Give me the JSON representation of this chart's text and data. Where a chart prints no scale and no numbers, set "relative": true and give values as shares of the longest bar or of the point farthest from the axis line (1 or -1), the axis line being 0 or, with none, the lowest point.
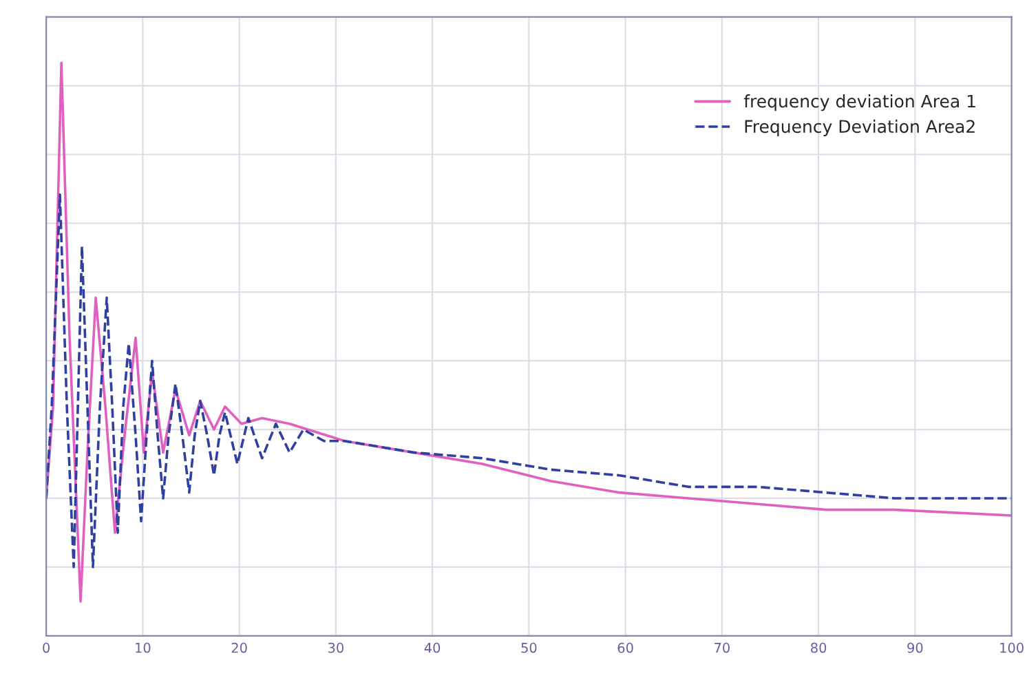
{
  "chart_data": {
    "type": "line",
    "relative": true,
    "xlim": [
      0,
      100
    ],
    "xticks": [
      0,
      10,
      20,
      30,
      40,
      50,
      60,
      70,
      80,
      90,
      100
    ],
    "grid": true,
    "legend": "top right",
    "tick_labels": "x",
    "series": [
      {
        "name": "frequency deviation Area 1",
        "color": "#e060c0",
        "line_style": "solid",
        "x": [
          0,
          0.71,
          1.57,
          2.42,
          3.56,
          4.27,
          5.13,
          6.13,
          7.12,
          8.12,
          9.26,
          10.11,
          10.97,
          12.11,
          13.39,
          14.81,
          15.95,
          17.38,
          18.52,
          20.23,
          22.36,
          25.21,
          30.91,
          38.03,
          45.16,
          52.28,
          59.4,
          66.52,
          73.65,
          80.77,
          87.89,
          100
        ],
        "values": [
          0.24,
          0.4,
          1.0,
          0.52,
          0.06,
          0.32,
          0.59,
          0.4,
          0.18,
          0.35,
          0.52,
          0.32,
          0.46,
          0.32,
          0.43,
          0.35,
          0.41,
          0.36,
          0.4,
          0.37,
          0.38,
          0.37,
          0.34,
          0.32,
          0.3,
          0.27,
          0.25,
          0.24,
          0.23,
          0.22,
          0.22,
          0.21
        ]
      },
      {
        "name": "Frequency Deviation Area2",
        "color": "#3040a0",
        "line_style": "dashed",
        "x": [
          0,
          0.57,
          1.42,
          2.14,
          2.85,
          3.28,
          3.7,
          4.27,
          4.84,
          5.56,
          6.27,
          6.84,
          7.41,
          7.98,
          8.55,
          9.26,
          9.83,
          10.4,
          10.97,
          11.54,
          12.11,
          12.68,
          13.39,
          14.1,
          14.81,
          15.38,
          15.95,
          16.67,
          17.38,
          17.95,
          18.52,
          19.8,
          20.94,
          22.36,
          23.79,
          25.21,
          26.64,
          28.77,
          30.91,
          38.03,
          45.16,
          52.28,
          59.4,
          66.52,
          73.65,
          80.77,
          87.89,
          100
        ],
        "values": [
          0.24,
          0.4,
          0.77,
          0.4,
          0.12,
          0.4,
          0.68,
          0.4,
          0.12,
          0.4,
          0.59,
          0.4,
          0.18,
          0.4,
          0.51,
          0.35,
          0.2,
          0.35,
          0.48,
          0.35,
          0.24,
          0.35,
          0.44,
          0.35,
          0.25,
          0.35,
          0.41,
          0.35,
          0.28,
          0.35,
          0.39,
          0.3,
          0.38,
          0.31,
          0.37,
          0.32,
          0.36,
          0.34,
          0.34,
          0.32,
          0.31,
          0.29,
          0.28,
          0.26,
          0.26,
          0.25,
          0.24,
          0.24
        ]
      }
    ]
  }
}
